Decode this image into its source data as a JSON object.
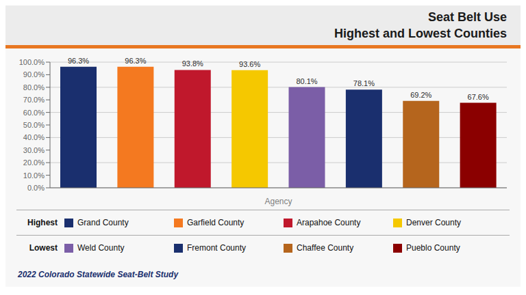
{
  "chart_data": {
    "type": "bar",
    "title": "Seat Belt Use",
    "subtitle": "Highest and Lowest Counties",
    "xlabel": "Agency",
    "categories": [
      "Grand County",
      "Garfield County",
      "Arapahoe County",
      "Denver County",
      "Weld County",
      "Fremont County",
      "Chaffee County",
      "Pueblo County"
    ],
    "values": [
      96.3,
      96.3,
      93.8,
      93.6,
      80.1,
      78.1,
      69.2,
      67.6
    ],
    "value_labels": [
      "96.3%",
      "96.3%",
      "93.8%",
      "93.6%",
      "80.1%",
      "78.1%",
      "69.2%",
      "67.6%"
    ],
    "colors": [
      "#1a2f6e",
      "#f47920",
      "#c0182c",
      "#f5c800",
      "#7b5ea7",
      "#1a2f6e",
      "#b5651d",
      "#8b0000"
    ],
    "data_labels": true,
    "tick_labels": "y",
    "ylim": [
      0,
      100
    ],
    "yticks": [
      {
        "value": 0,
        "label": "0.0%"
      },
      {
        "value": 10,
        "label": "10.0%"
      },
      {
        "value": 20,
        "label": "20.0%"
      },
      {
        "value": 30,
        "label": "30.0%"
      },
      {
        "value": 40,
        "label": "40.0%"
      },
      {
        "value": 50,
        "label": "50.0%"
      },
      {
        "value": 60,
        "label": "60.0%"
      },
      {
        "value": 70,
        "label": "70.0%"
      },
      {
        "value": 80,
        "label": "80.0%"
      },
      {
        "value": 90,
        "label": "90.0%"
      },
      {
        "value": 100,
        "label": "100.0%"
      }
    ],
    "grid": true,
    "legend": "bottom",
    "legend_groups": [
      {
        "label": "Highest",
        "categories": [
          "Grand County",
          "Garfield County",
          "Arapahoe County",
          "Denver County"
        ]
      },
      {
        "label": "Lowest",
        "categories": [
          "Weld County",
          "Fremont County",
          "Chaffee County",
          "Pueblo County"
        ]
      }
    ],
    "annotations": [
      "2022 Colorado Statewide Seat-Belt Study"
    ]
  }
}
